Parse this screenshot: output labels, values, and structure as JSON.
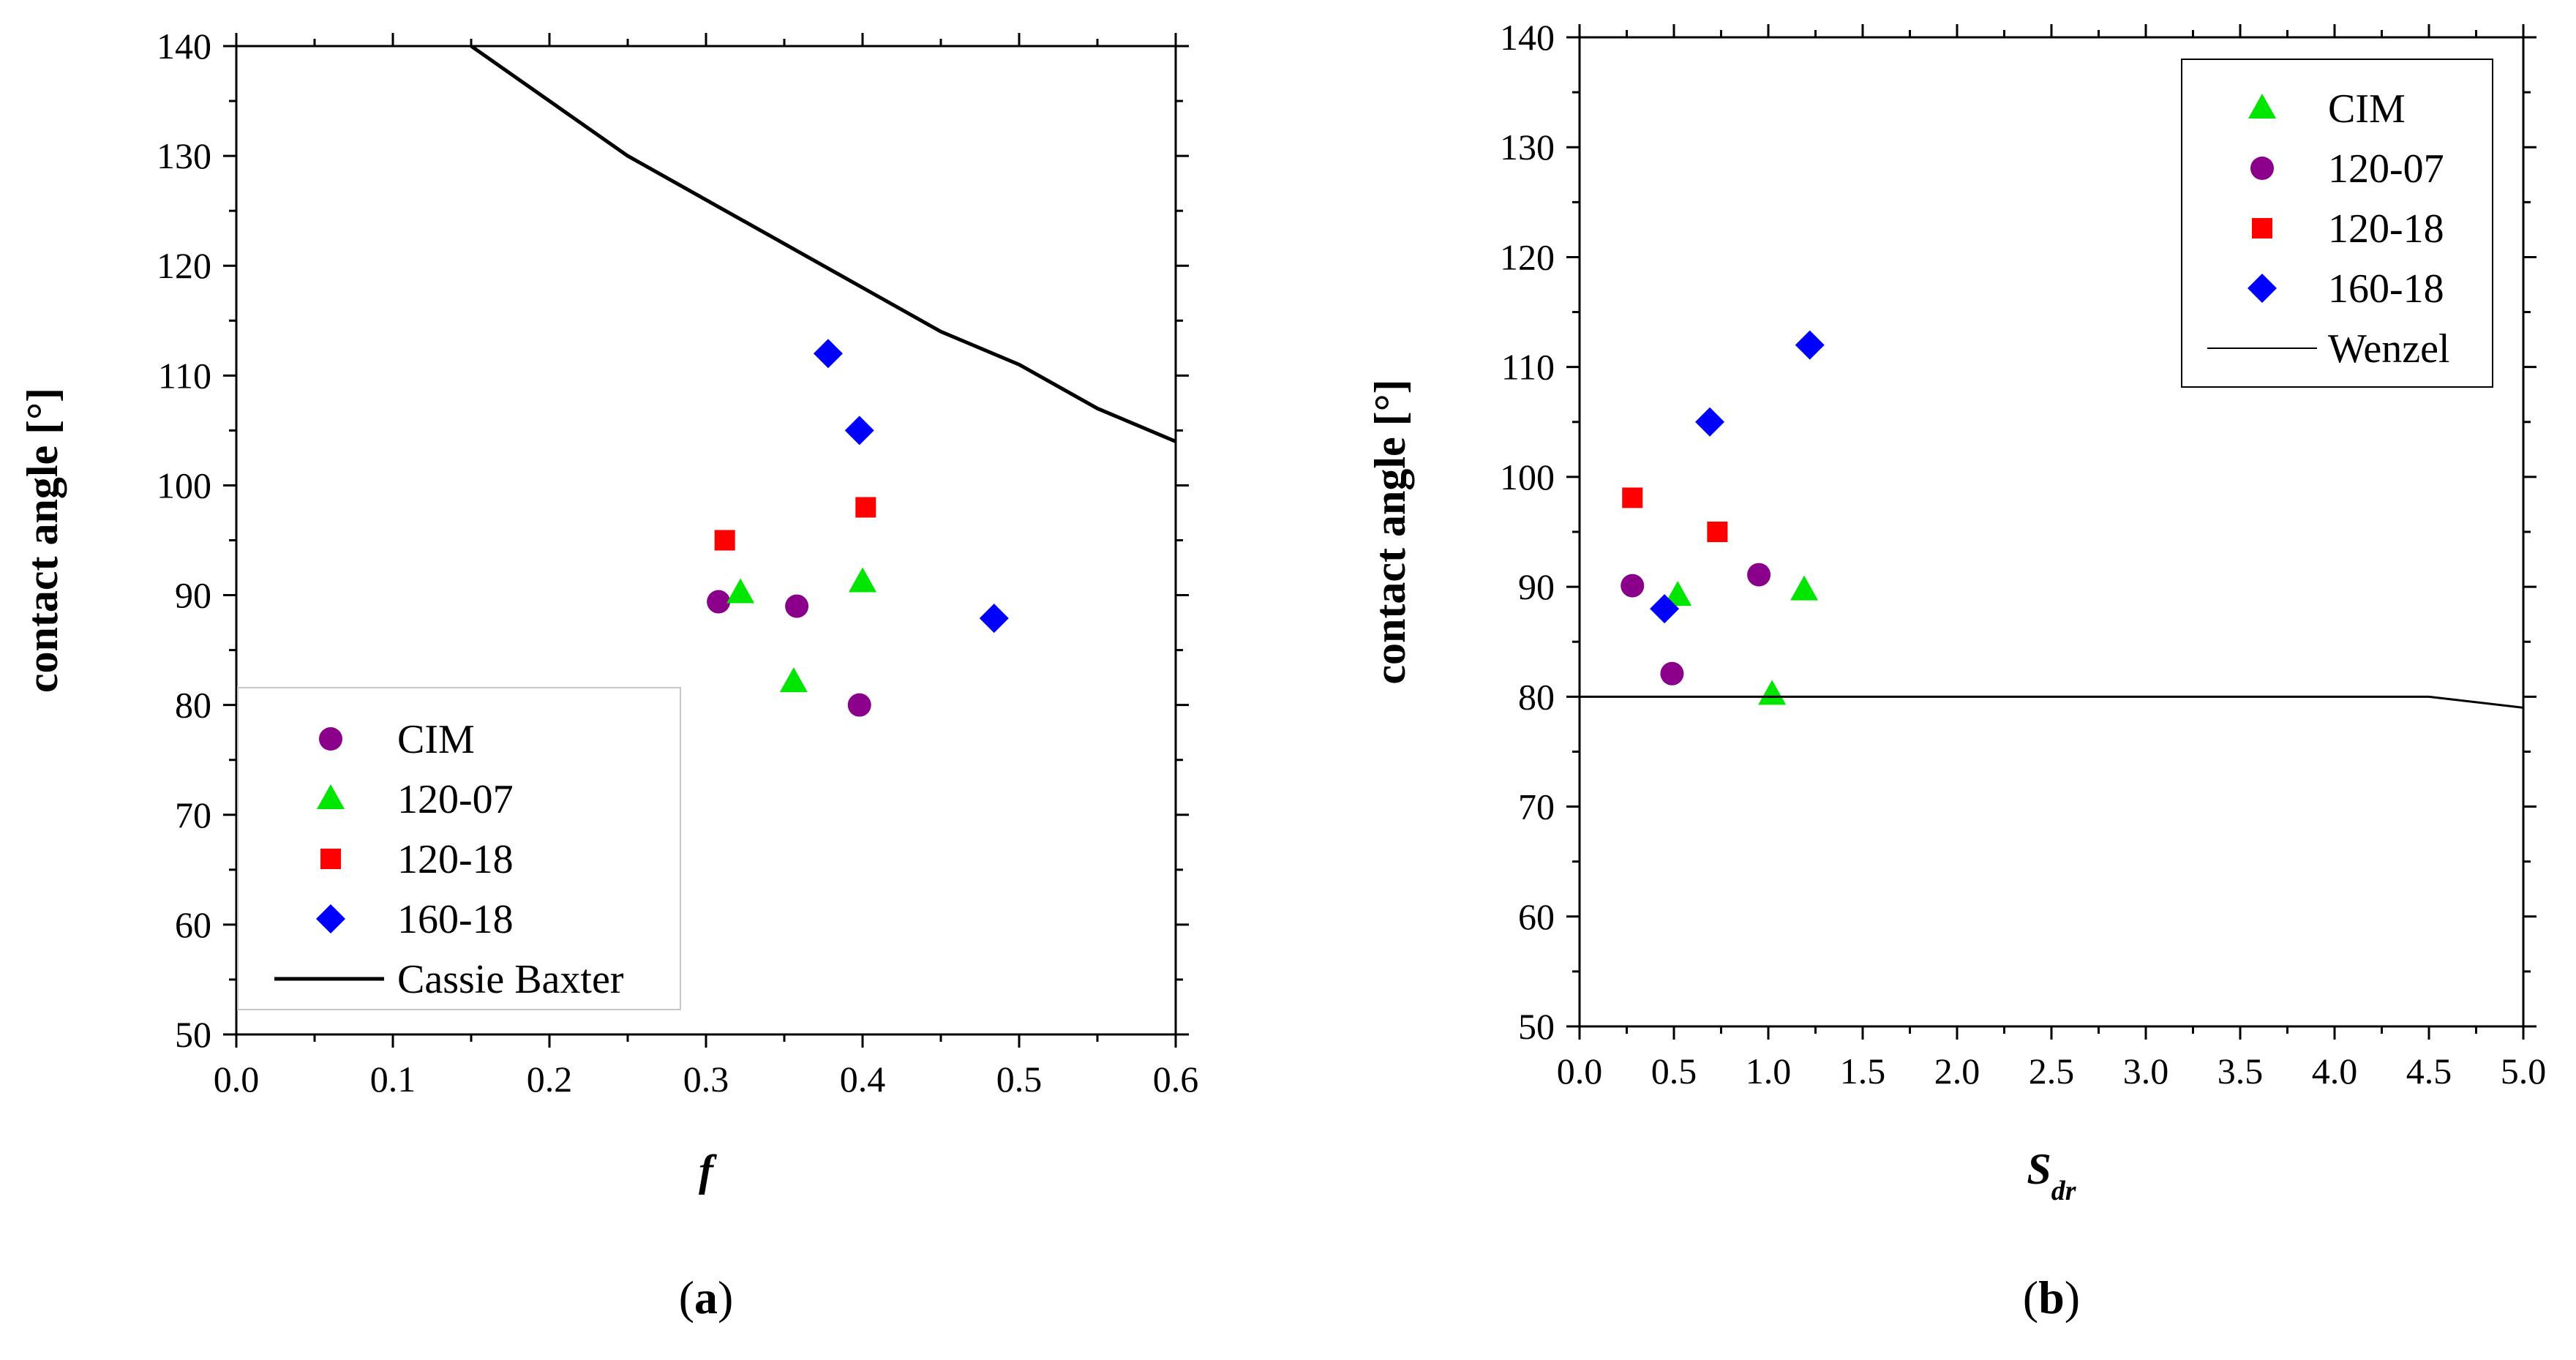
{
  "chart_data": [
    {
      "type": "scatter",
      "panel_label": "(a)",
      "panel_letter": "a",
      "xlabel": "f",
      "ylabel": "contact angle [°]",
      "xlim": [
        0.0,
        0.6
      ],
      "ylim": [
        50,
        140
      ],
      "x_ticks": [
        0.0,
        0.1,
        0.2,
        0.3,
        0.4,
        0.5,
        0.6
      ],
      "x_tick_labels": [
        "0.0",
        "0.1",
        "0.2",
        "0.3",
        "0.4",
        "0.5",
        "0.6"
      ],
      "y_ticks": [
        50,
        60,
        70,
        80,
        90,
        100,
        110,
        120,
        130,
        140
      ],
      "y_tick_labels": [
        "50",
        "60",
        "70",
        "80",
        "90",
        "100",
        "110",
        "120",
        "130",
        "140"
      ],
      "legend_position": "bottom-left",
      "series": [
        {
          "name": "CIM",
          "marker": "circle",
          "color": "#8B008B",
          "points": [
            [
              0.308,
              89.4
            ],
            [
              0.358,
              89.0
            ],
            [
              0.398,
              80.0
            ]
          ]
        },
        {
          "name": "120-07",
          "marker": "triangle",
          "color": "#00E600",
          "points": [
            [
              0.322,
              90.2
            ],
            [
              0.356,
              82.1
            ],
            [
              0.4,
              91.2
            ]
          ]
        },
        {
          "name": "120-18",
          "marker": "square",
          "color": "#FF0000",
          "points": [
            [
              0.312,
              95.0
            ],
            [
              0.402,
              98.0
            ]
          ]
        },
        {
          "name": "160-18",
          "marker": "diamond",
          "color": "#0000FF",
          "points": [
            [
              0.378,
              112.0
            ],
            [
              0.398,
              105.0
            ],
            [
              0.484,
              87.9
            ]
          ]
        },
        {
          "name": "Cassie Baxter",
          "marker": "line",
          "color": "#000000",
          "points": [
            [
              0.15,
              140.0
            ],
            [
              0.2,
              135.0
            ],
            [
              0.25,
              130.0
            ],
            [
              0.3,
              126.0
            ],
            [
              0.35,
              122.0
            ],
            [
              0.4,
              118.0
            ],
            [
              0.45,
              114.0
            ],
            [
              0.5,
              111.0
            ],
            [
              0.55,
              107.0
            ],
            [
              0.6,
              104.0
            ]
          ]
        }
      ]
    },
    {
      "type": "scatter",
      "panel_label": "(b)",
      "panel_letter": "b",
      "xlabel": "S",
      "xlabel_subscript": "dr",
      "ylabel": "contact angle [°]",
      "xlim": [
        0.0,
        5.0
      ],
      "ylim": [
        50,
        140
      ],
      "x_ticks": [
        0.0,
        0.5,
        1.0,
        1.5,
        2.0,
        2.5,
        3.0,
        3.5,
        4.0,
        4.5,
        5.0
      ],
      "x_tick_labels": [
        "0.0",
        "0.5",
        "1.0",
        "1.5",
        "2.0",
        "2.5",
        "3.0",
        "3.5",
        "4.0",
        "4.5",
        "5.0"
      ],
      "y_ticks": [
        50,
        60,
        70,
        80,
        90,
        100,
        110,
        120,
        130,
        140
      ],
      "y_tick_labels": [
        "50",
        "60",
        "70",
        "80",
        "90",
        "100",
        "110",
        "120",
        "130",
        "140"
      ],
      "legend_position": "top-right",
      "series": [
        {
          "name": "CIM",
          "marker": "triangle",
          "color": "#00E600",
          "points": [
            [
              0.52,
              89.2
            ],
            [
              1.02,
              80.2
            ],
            [
              1.19,
              89.7
            ]
          ]
        },
        {
          "name": "120-07",
          "marker": "circle",
          "color": "#8B008B",
          "points": [
            [
              0.28,
              90.1
            ],
            [
              0.49,
              82.1
            ],
            [
              0.95,
              91.1
            ]
          ]
        },
        {
          "name": "120-18",
          "marker": "square",
          "color": "#FF0000",
          "points": [
            [
              0.28,
              98.1
            ],
            [
              0.73,
              95.0
            ]
          ]
        },
        {
          "name": "160-18",
          "marker": "diamond",
          "color": "#0000FF",
          "points": [
            [
              0.45,
              88.0
            ],
            [
              0.69,
              105.0
            ],
            [
              1.22,
              112.0
            ]
          ]
        },
        {
          "name": "Wenzel",
          "marker": "line",
          "color": "#000000",
          "points": [
            [
              0.0,
              80.0
            ],
            [
              4.5,
              80.0
            ],
            [
              5.0,
              79.0
            ]
          ]
        }
      ]
    }
  ]
}
